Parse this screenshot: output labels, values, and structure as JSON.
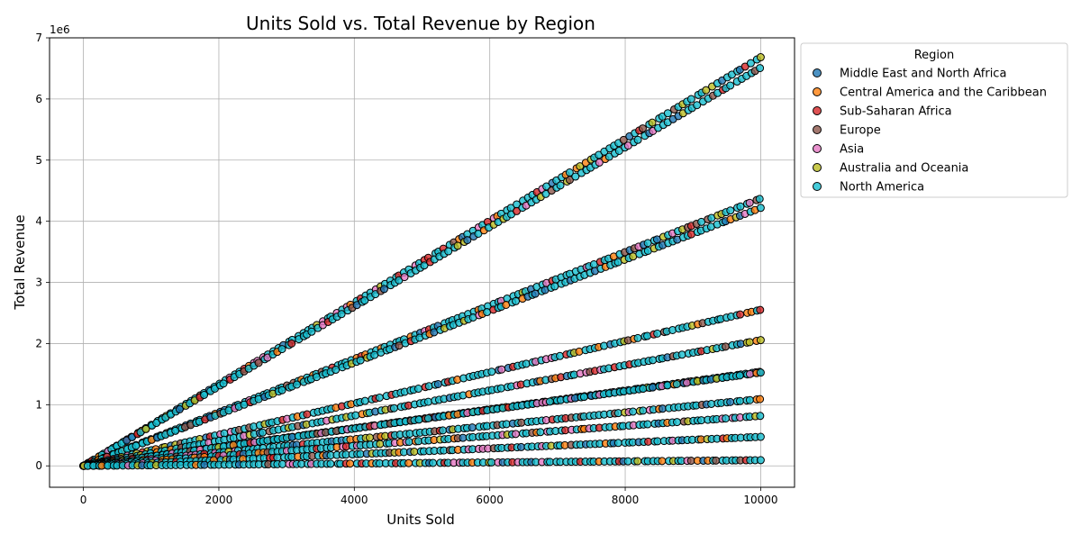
{
  "chart_data": {
    "type": "scatter",
    "title": "Units Sold vs. Total Revenue by Region",
    "xlabel": "Units Sold",
    "ylabel": "Total Revenue",
    "y_offset_text": "1e6",
    "xlim": [
      -500,
      10500
    ],
    "ylim": [
      -350000,
      7000000
    ],
    "x_ticks": [
      0,
      2000,
      4000,
      6000,
      8000,
      10000
    ],
    "y_ticks": [
      0,
      1,
      2,
      3,
      4,
      5,
      6,
      7
    ],
    "y_tick_scale": 1000000,
    "grid": true,
    "legend_title": "Region",
    "legend_placement": "outside-right-top",
    "series": [
      {
        "name": "Middle East and North Africa",
        "color": "#1f77b4"
      },
      {
        "name": "Central America and the Caribbean",
        "color": "#ff7f0e"
      },
      {
        "name": "Sub-Saharan Africa",
        "color": "#d62728"
      },
      {
        "name": "Europe",
        "color": "#8c564b"
      },
      {
        "name": "Asia",
        "color": "#e377c2"
      },
      {
        "name": "Australia and Oceania",
        "color": "#bcbd22"
      },
      {
        "name": "North America",
        "color": "#17becf"
      }
    ],
    "unit_price_bands": [
      668.27,
      651.21,
      437.2,
      421.89,
      255.28,
      205.7,
      154.06,
      152.58,
      109.28,
      81.73,
      47.45,
      9.33
    ],
    "x_range": [
      0,
      10000
    ]
  }
}
